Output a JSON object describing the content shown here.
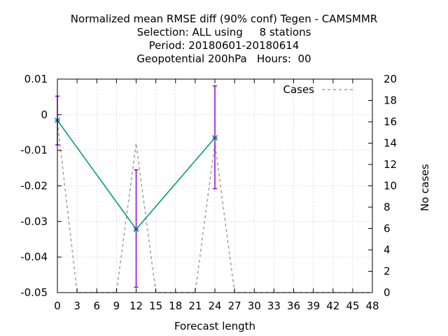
{
  "chart_data": {
    "type": "line",
    "title_lines": [
      "Normalized mean RMSE diff (90% conf) Tegen - CAMSMMR",
      "Selection: ALL using     8 stations",
      "Period: 20180601-20180614",
      "Geopotential 200hPa   Hours:  00"
    ],
    "xlabel": "Forecast length",
    "ylabel": "",
    "y2label": "No cases",
    "xlim": [
      0,
      48
    ],
    "ylim": [
      -0.05,
      0.01
    ],
    "y2lim": [
      0,
      20
    ],
    "x_ticks": [
      0,
      3,
      6,
      9,
      12,
      15,
      18,
      21,
      24,
      27,
      30,
      33,
      36,
      39,
      42,
      45,
      48
    ],
    "y_ticks": [
      "0.01",
      "0",
      "-0.01",
      "-0.02",
      "-0.03",
      "-0.04",
      "-0.05"
    ],
    "y_tick_values": [
      0.01,
      0,
      -0.01,
      -0.02,
      -0.03,
      -0.04,
      -0.05
    ],
    "y2_ticks": [
      0,
      2,
      4,
      6,
      8,
      10,
      12,
      14,
      16,
      18,
      20
    ],
    "grid": true,
    "legend_position": "top-right",
    "series": [
      {
        "name": "",
        "color": "#009e73",
        "marker_color": "#1b6a8f",
        "x": [
          0,
          12,
          24
        ],
        "y": [
          -0.0016,
          -0.0322,
          -0.0065
        ],
        "error_low": [
          -0.0085,
          -0.0485,
          -0.0208
        ],
        "error_high": [
          0.0052,
          -0.0155,
          0.0081
        ],
        "error_color": "#9400d3"
      },
      {
        "name": "Cases",
        "axis": "y2",
        "color": "#a0a0a0",
        "dash": true,
        "x": [
          0,
          3,
          6,
          9,
          12,
          15,
          18,
          21,
          24,
          27,
          30,
          33,
          36,
          39,
          42,
          45,
          48
        ],
        "y": [
          16,
          0,
          0,
          0,
          14,
          0,
          0,
          0,
          14,
          0,
          0,
          0,
          0,
          0,
          0,
          0,
          0
        ]
      }
    ]
  }
}
